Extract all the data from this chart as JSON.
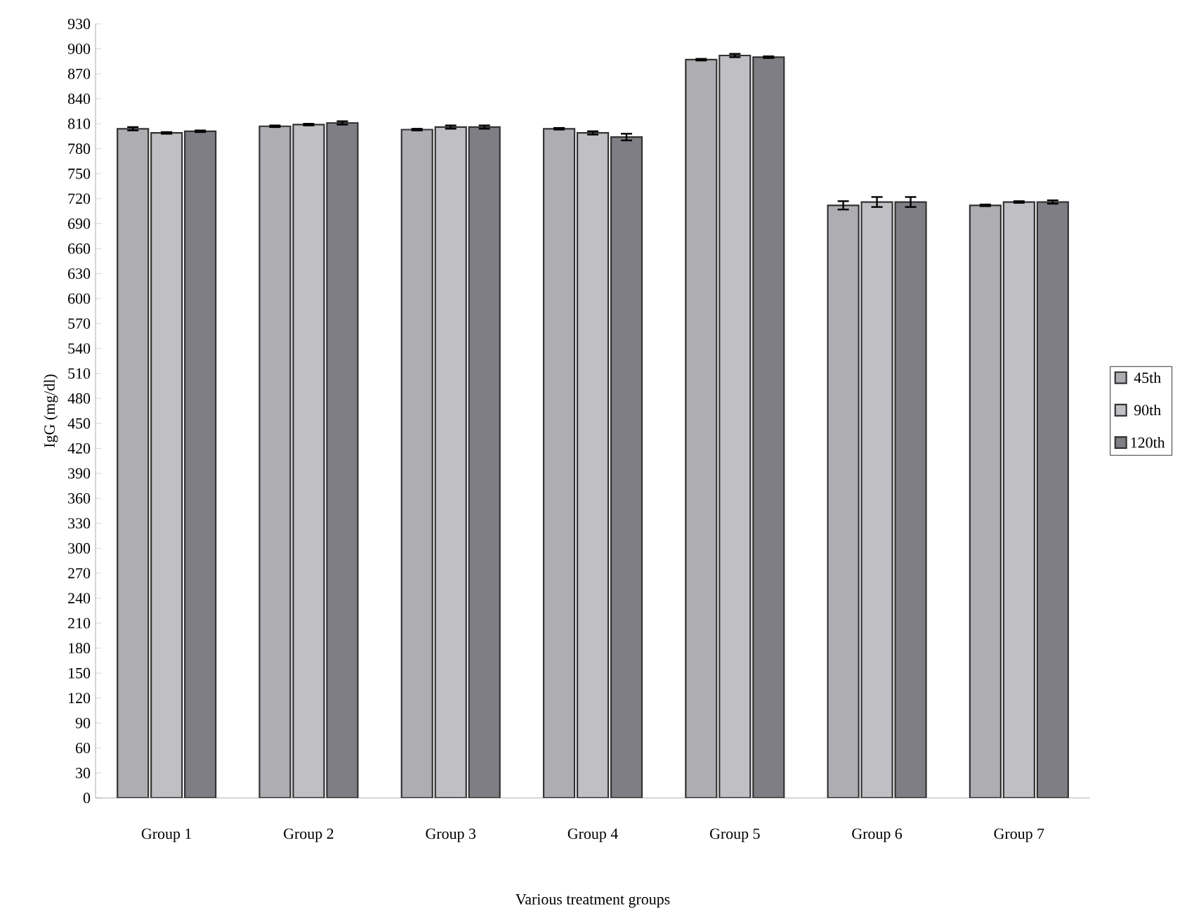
{
  "chart_data": {
    "type": "bar",
    "xlabel": "Various treatment groups",
    "ylabel": "IgG (mg/dl)",
    "categories": [
      "Group 1",
      "Group 2",
      "Group 3",
      "Group 4",
      "Group 5",
      "Group 6",
      "Group 7"
    ],
    "series": [
      {
        "name": "45th",
        "color": "#aeadb2",
        "values": [
          804,
          807,
          803,
          804,
          887,
          712,
          712
        ],
        "errors": [
          2,
          1,
          1,
          1,
          1,
          5,
          1
        ]
      },
      {
        "name": "90th",
        "color": "#c0bfc4",
        "values": [
          799,
          809,
          806,
          799,
          892,
          716,
          716
        ],
        "errors": [
          1,
          1,
          2,
          2,
          2,
          6,
          1
        ]
      },
      {
        "name": "120th",
        "color": "#7f7e84",
        "values": [
          801,
          811,
          806,
          794,
          890,
          716,
          716
        ],
        "errors": [
          1,
          2,
          2,
          4,
          1,
          6,
          2
        ]
      }
    ],
    "ylim": [
      0,
      930
    ],
    "yticks": [
      0,
      30,
      60,
      90,
      120,
      150,
      180,
      210,
      240,
      270,
      300,
      330,
      360,
      390,
      420,
      450,
      480,
      510,
      540,
      570,
      600,
      630,
      660,
      690,
      720,
      750,
      780,
      810,
      840,
      870,
      900,
      930
    ],
    "grid": false,
    "legend": "right"
  }
}
